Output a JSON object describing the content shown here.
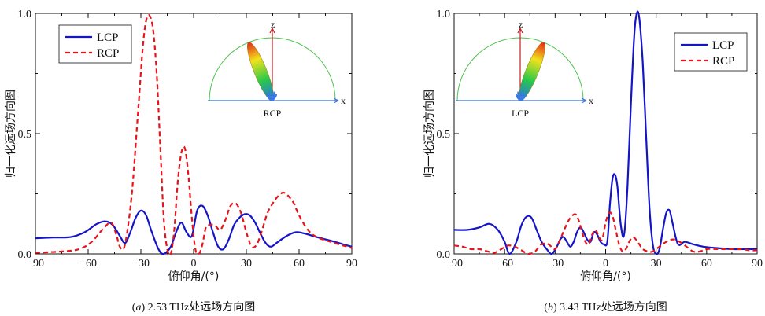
{
  "chart_data": [
    {
      "type": "line",
      "caption_letter": "a",
      "caption": ") 2.53 THz处远场方向图",
      "xlabel": "俯仰角/(°)",
      "ylabel": "归一化远场方向图",
      "xlim": [
        -90,
        90
      ],
      "ylim": [
        0,
        1
      ],
      "xticks": [
        -90,
        -60,
        -30,
        0,
        30,
        60,
        90
      ],
      "yticks": [
        0.0,
        0.5,
        1.0
      ],
      "ytick_labels": [
        "0.0",
        "0.5",
        "1.0"
      ],
      "legend_position": "top-left",
      "colors": {
        "LCP": "#1515c8",
        "RCP": "#e8141c"
      },
      "series": [
        {
          "name": "LCP",
          "style": "solid",
          "x": [
            -90,
            -80,
            -70,
            -62,
            -55,
            -50,
            -46,
            -42,
            -39,
            -36,
            -33,
            -30,
            -27,
            -24,
            -20,
            -17,
            -13,
            -10,
            -7,
            -4,
            -1,
            2,
            5,
            8,
            11,
            14,
            17,
            20,
            23,
            26,
            29,
            32,
            35,
            38,
            41,
            44,
            48,
            53,
            58,
            63,
            70,
            78,
            85,
            90
          ],
          "y": [
            0.065,
            0.068,
            0.07,
            0.09,
            0.125,
            0.135,
            0.12,
            0.075,
            0.045,
            0.09,
            0.15,
            0.18,
            0.16,
            0.095,
            0.02,
            0.0,
            0.03,
            0.09,
            0.13,
            0.09,
            0.075,
            0.18,
            0.2,
            0.16,
            0.09,
            0.03,
            0.02,
            0.06,
            0.12,
            0.15,
            0.165,
            0.16,
            0.13,
            0.085,
            0.045,
            0.03,
            0.05,
            0.075,
            0.09,
            0.085,
            0.07,
            0.055,
            0.04,
            0.03
          ]
        },
        {
          "name": "RCP",
          "style": "dashed",
          "x": [
            -90,
            -75,
            -65,
            -58,
            -52,
            -47,
            -44,
            -42,
            -40,
            -38,
            -35,
            -32,
            -29,
            -27,
            -25,
            -23,
            -21,
            -19,
            -17,
            -15,
            -13,
            -11,
            -9,
            -7,
            -5,
            -3,
            -1,
            1,
            3,
            5,
            7,
            9,
            12,
            15,
            18,
            21,
            24,
            27,
            30,
            33,
            36,
            39,
            42,
            45,
            48,
            51,
            54,
            57,
            60,
            65,
            70,
            78,
            85,
            90
          ],
          "y": [
            0.005,
            0.01,
            0.02,
            0.05,
            0.1,
            0.13,
            0.08,
            0.03,
            0.02,
            0.08,
            0.26,
            0.55,
            0.85,
            0.97,
            0.99,
            0.93,
            0.75,
            0.45,
            0.15,
            0.02,
            0.0,
            0.1,
            0.3,
            0.42,
            0.44,
            0.33,
            0.15,
            0.02,
            0.0,
            0.04,
            0.11,
            0.12,
            0.12,
            0.1,
            0.14,
            0.2,
            0.21,
            0.17,
            0.09,
            0.03,
            0.04,
            0.1,
            0.17,
            0.21,
            0.24,
            0.255,
            0.24,
            0.21,
            0.16,
            0.1,
            0.07,
            0.05,
            0.035,
            0.025
          ]
        }
      ],
      "inset": {
        "axis_z": "z",
        "axis_x": "x",
        "label": "RCP"
      }
    },
    {
      "type": "line",
      "caption_letter": "b",
      "caption": ") 3.43 THz处远场方向图",
      "xlabel": "俯仰角/(°)",
      "ylabel": "归一化远场方向图",
      "xlim": [
        -90,
        90
      ],
      "ylim": [
        0,
        1
      ],
      "xticks": [
        -90,
        -60,
        -30,
        0,
        30,
        60,
        90
      ],
      "yticks": [
        0.0,
        0.5,
        1.0
      ],
      "ytick_labels": [
        "0.0",
        "0.5",
        "1.0"
      ],
      "legend_position": "top-right",
      "colors": {
        "LCP": "#1515c8",
        "RCP": "#e8141c"
      },
      "series": [
        {
          "name": "LCP",
          "style": "solid",
          "x": [
            -90,
            -82,
            -75,
            -69,
            -64,
            -60,
            -57,
            -53,
            -50,
            -47,
            -44,
            -41,
            -38,
            -35,
            -32,
            -29,
            -27,
            -25,
            -23,
            -21,
            -19,
            -17,
            -15,
            -13,
            -11,
            -9,
            -7,
            -5,
            -3,
            -1,
            1,
            2.5,
            4,
            5.5,
            7,
            9,
            11,
            13,
            15,
            17,
            18.5,
            20,
            22,
            24,
            26,
            28,
            30,
            32,
            34,
            36,
            38,
            40,
            43,
            47,
            52,
            58,
            65,
            75,
            85,
            90
          ],
          "y": [
            0.1,
            0.1,
            0.11,
            0.125,
            0.1,
            0.05,
            0.0,
            0.05,
            0.12,
            0.155,
            0.15,
            0.1,
            0.05,
            0.02,
            0.0,
            0.03,
            0.06,
            0.07,
            0.05,
            0.03,
            0.05,
            0.09,
            0.11,
            0.09,
            0.06,
            0.05,
            0.09,
            0.08,
            0.05,
            0.04,
            0.05,
            0.2,
            0.31,
            0.33,
            0.28,
            0.12,
            0.08,
            0.28,
            0.62,
            0.91,
            1.0,
            0.98,
            0.8,
            0.5,
            0.2,
            0.04,
            0.0,
            0.02,
            0.1,
            0.17,
            0.18,
            0.12,
            0.04,
            0.05,
            0.04,
            0.03,
            0.025,
            0.02,
            0.02,
            0.02
          ]
        },
        {
          "name": "RCP",
          "style": "dashed",
          "x": [
            -90,
            -85,
            -80,
            -75,
            -70,
            -66,
            -62,
            -58,
            -54,
            -50,
            -46,
            -42,
            -38,
            -34,
            -30,
            -27,
            -24,
            -21,
            -18,
            -16,
            -14,
            -12,
            -10,
            -8,
            -6,
            -4,
            -2,
            0,
            2,
            4,
            6,
            8,
            10,
            12,
            14,
            16,
            18,
            20,
            22,
            25,
            28,
            32,
            36,
            40,
            44,
            48,
            52,
            56,
            60,
            66,
            72,
            80,
            86,
            90
          ],
          "y": [
            0.035,
            0.03,
            0.02,
            0.02,
            0.01,
            0.005,
            0.02,
            0.035,
            0.03,
            0.015,
            0.0,
            0.01,
            0.04,
            0.04,
            0.02,
            0.06,
            0.11,
            0.15,
            0.165,
            0.14,
            0.09,
            0.05,
            0.04,
            0.08,
            0.1,
            0.07,
            0.06,
            0.13,
            0.17,
            0.16,
            0.1,
            0.04,
            0.01,
            0.02,
            0.05,
            0.07,
            0.06,
            0.04,
            0.02,
            0.01,
            0.01,
            0.03,
            0.05,
            0.06,
            0.05,
            0.03,
            0.01,
            0.01,
            0.02,
            0.02,
            0.02,
            0.02,
            0.015,
            0.015
          ]
        }
      ],
      "inset": {
        "axis_z": "z",
        "axis_x": "x",
        "label": "LCP"
      }
    }
  ]
}
